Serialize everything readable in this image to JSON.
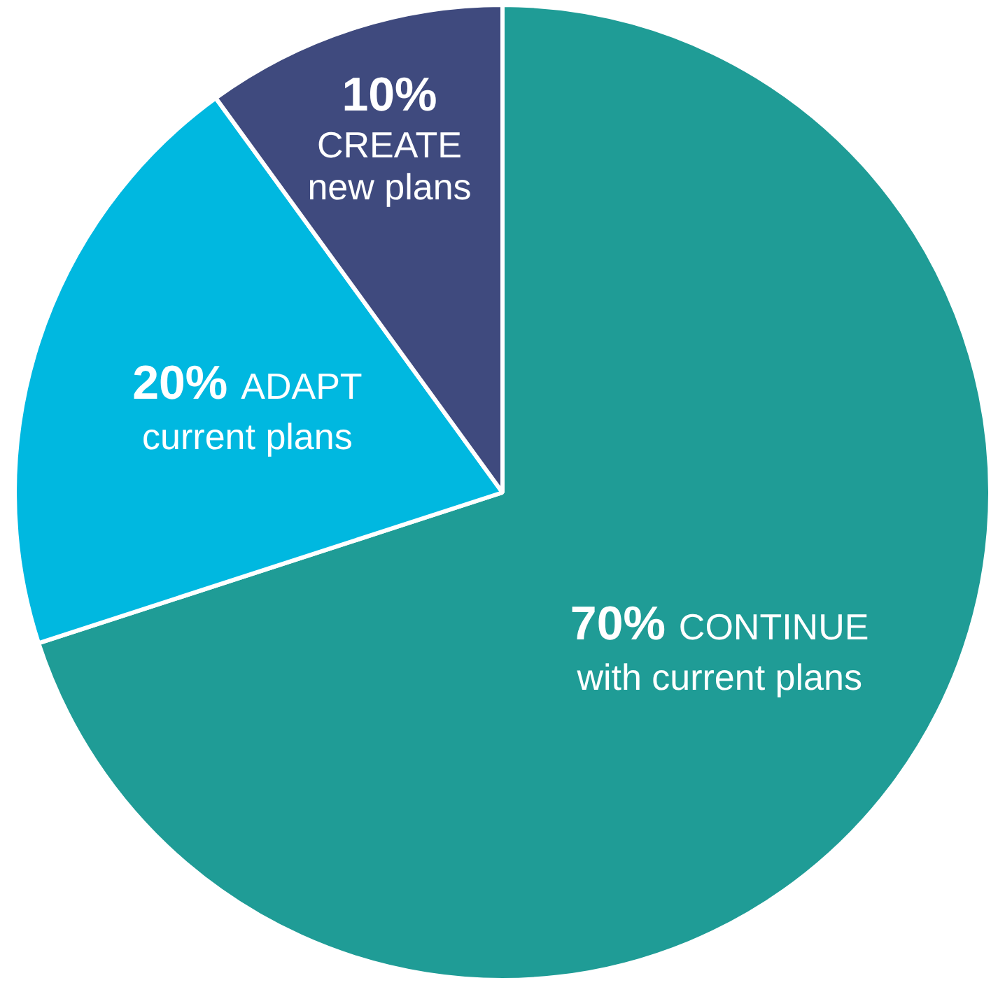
{
  "chart_data": {
    "type": "pie",
    "categories": [
      "CONTINUE with current plans",
      "ADAPT current plans",
      "CREATE new plans"
    ],
    "values": [
      70,
      20,
      10
    ],
    "colors": [
      "#1f9c96",
      "#00b8e0",
      "#3f4a7e"
    ],
    "value_labels": [
      "70%",
      "20%",
      "10%"
    ],
    "legend": false
  }
}
